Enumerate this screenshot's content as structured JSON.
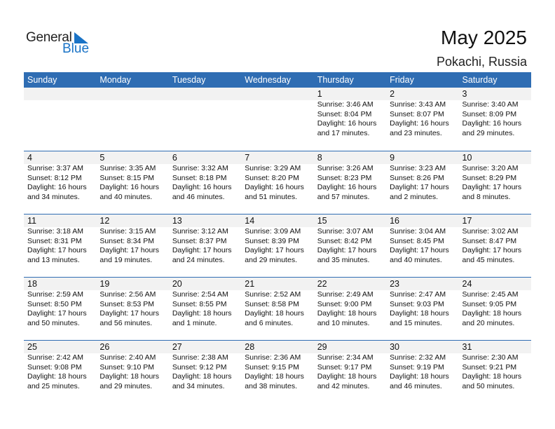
{
  "logo": {
    "general": "General",
    "blue": "Blue",
    "accent": "#1a73c6"
  },
  "title": "May 2025",
  "location": "Pokachi, Russia",
  "colors": {
    "header": "#2f6db3",
    "date_band": "#f2f2f2"
  },
  "weekdays": [
    "Sunday",
    "Monday",
    "Tuesday",
    "Wednesday",
    "Thursday",
    "Friday",
    "Saturday"
  ],
  "weeks": [
    [
      null,
      null,
      null,
      null,
      {
        "day": "1",
        "sunrise": "Sunrise: 3:46 AM",
        "sunset": "Sunset: 8:04 PM",
        "daylight1": "Daylight: 16 hours",
        "daylight2": "and 17 minutes."
      },
      {
        "day": "2",
        "sunrise": "Sunrise: 3:43 AM",
        "sunset": "Sunset: 8:07 PM",
        "daylight1": "Daylight: 16 hours",
        "daylight2": "and 23 minutes."
      },
      {
        "day": "3",
        "sunrise": "Sunrise: 3:40 AM",
        "sunset": "Sunset: 8:09 PM",
        "daylight1": "Daylight: 16 hours",
        "daylight2": "and 29 minutes."
      }
    ],
    [
      {
        "day": "4",
        "sunrise": "Sunrise: 3:37 AM",
        "sunset": "Sunset: 8:12 PM",
        "daylight1": "Daylight: 16 hours",
        "daylight2": "and 34 minutes."
      },
      {
        "day": "5",
        "sunrise": "Sunrise: 3:35 AM",
        "sunset": "Sunset: 8:15 PM",
        "daylight1": "Daylight: 16 hours",
        "daylight2": "and 40 minutes."
      },
      {
        "day": "6",
        "sunrise": "Sunrise: 3:32 AM",
        "sunset": "Sunset: 8:18 PM",
        "daylight1": "Daylight: 16 hours",
        "daylight2": "and 46 minutes."
      },
      {
        "day": "7",
        "sunrise": "Sunrise: 3:29 AM",
        "sunset": "Sunset: 8:20 PM",
        "daylight1": "Daylight: 16 hours",
        "daylight2": "and 51 minutes."
      },
      {
        "day": "8",
        "sunrise": "Sunrise: 3:26 AM",
        "sunset": "Sunset: 8:23 PM",
        "daylight1": "Daylight: 16 hours",
        "daylight2": "and 57 minutes."
      },
      {
        "day": "9",
        "sunrise": "Sunrise: 3:23 AM",
        "sunset": "Sunset: 8:26 PM",
        "daylight1": "Daylight: 17 hours",
        "daylight2": "and 2 minutes."
      },
      {
        "day": "10",
        "sunrise": "Sunrise: 3:20 AM",
        "sunset": "Sunset: 8:29 PM",
        "daylight1": "Daylight: 17 hours",
        "daylight2": "and 8 minutes."
      }
    ],
    [
      {
        "day": "11",
        "sunrise": "Sunrise: 3:18 AM",
        "sunset": "Sunset: 8:31 PM",
        "daylight1": "Daylight: 17 hours",
        "daylight2": "and 13 minutes."
      },
      {
        "day": "12",
        "sunrise": "Sunrise: 3:15 AM",
        "sunset": "Sunset: 8:34 PM",
        "daylight1": "Daylight: 17 hours",
        "daylight2": "and 19 minutes."
      },
      {
        "day": "13",
        "sunrise": "Sunrise: 3:12 AM",
        "sunset": "Sunset: 8:37 PM",
        "daylight1": "Daylight: 17 hours",
        "daylight2": "and 24 minutes."
      },
      {
        "day": "14",
        "sunrise": "Sunrise: 3:09 AM",
        "sunset": "Sunset: 8:39 PM",
        "daylight1": "Daylight: 17 hours",
        "daylight2": "and 29 minutes."
      },
      {
        "day": "15",
        "sunrise": "Sunrise: 3:07 AM",
        "sunset": "Sunset: 8:42 PM",
        "daylight1": "Daylight: 17 hours",
        "daylight2": "and 35 minutes."
      },
      {
        "day": "16",
        "sunrise": "Sunrise: 3:04 AM",
        "sunset": "Sunset: 8:45 PM",
        "daylight1": "Daylight: 17 hours",
        "daylight2": "and 40 minutes."
      },
      {
        "day": "17",
        "sunrise": "Sunrise: 3:02 AM",
        "sunset": "Sunset: 8:47 PM",
        "daylight1": "Daylight: 17 hours",
        "daylight2": "and 45 minutes."
      }
    ],
    [
      {
        "day": "18",
        "sunrise": "Sunrise: 2:59 AM",
        "sunset": "Sunset: 8:50 PM",
        "daylight1": "Daylight: 17 hours",
        "daylight2": "and 50 minutes."
      },
      {
        "day": "19",
        "sunrise": "Sunrise: 2:56 AM",
        "sunset": "Sunset: 8:53 PM",
        "daylight1": "Daylight: 17 hours",
        "daylight2": "and 56 minutes."
      },
      {
        "day": "20",
        "sunrise": "Sunrise: 2:54 AM",
        "sunset": "Sunset: 8:55 PM",
        "daylight1": "Daylight: 18 hours",
        "daylight2": "and 1 minute."
      },
      {
        "day": "21",
        "sunrise": "Sunrise: 2:52 AM",
        "sunset": "Sunset: 8:58 PM",
        "daylight1": "Daylight: 18 hours",
        "daylight2": "and 6 minutes."
      },
      {
        "day": "22",
        "sunrise": "Sunrise: 2:49 AM",
        "sunset": "Sunset: 9:00 PM",
        "daylight1": "Daylight: 18 hours",
        "daylight2": "and 10 minutes."
      },
      {
        "day": "23",
        "sunrise": "Sunrise: 2:47 AM",
        "sunset": "Sunset: 9:03 PM",
        "daylight1": "Daylight: 18 hours",
        "daylight2": "and 15 minutes."
      },
      {
        "day": "24",
        "sunrise": "Sunrise: 2:45 AM",
        "sunset": "Sunset: 9:05 PM",
        "daylight1": "Daylight: 18 hours",
        "daylight2": "and 20 minutes."
      }
    ],
    [
      {
        "day": "25",
        "sunrise": "Sunrise: 2:42 AM",
        "sunset": "Sunset: 9:08 PM",
        "daylight1": "Daylight: 18 hours",
        "daylight2": "and 25 minutes."
      },
      {
        "day": "26",
        "sunrise": "Sunrise: 2:40 AM",
        "sunset": "Sunset: 9:10 PM",
        "daylight1": "Daylight: 18 hours",
        "daylight2": "and 29 minutes."
      },
      {
        "day": "27",
        "sunrise": "Sunrise: 2:38 AM",
        "sunset": "Sunset: 9:12 PM",
        "daylight1": "Daylight: 18 hours",
        "daylight2": "and 34 minutes."
      },
      {
        "day": "28",
        "sunrise": "Sunrise: 2:36 AM",
        "sunset": "Sunset: 9:15 PM",
        "daylight1": "Daylight: 18 hours",
        "daylight2": "and 38 minutes."
      },
      {
        "day": "29",
        "sunrise": "Sunrise: 2:34 AM",
        "sunset": "Sunset: 9:17 PM",
        "daylight1": "Daylight: 18 hours",
        "daylight2": "and 42 minutes."
      },
      {
        "day": "30",
        "sunrise": "Sunrise: 2:32 AM",
        "sunset": "Sunset: 9:19 PM",
        "daylight1": "Daylight: 18 hours",
        "daylight2": "and 46 minutes."
      },
      {
        "day": "31",
        "sunrise": "Sunrise: 2:30 AM",
        "sunset": "Sunset: 9:21 PM",
        "daylight1": "Daylight: 18 hours",
        "daylight2": "and 50 minutes."
      }
    ]
  ]
}
